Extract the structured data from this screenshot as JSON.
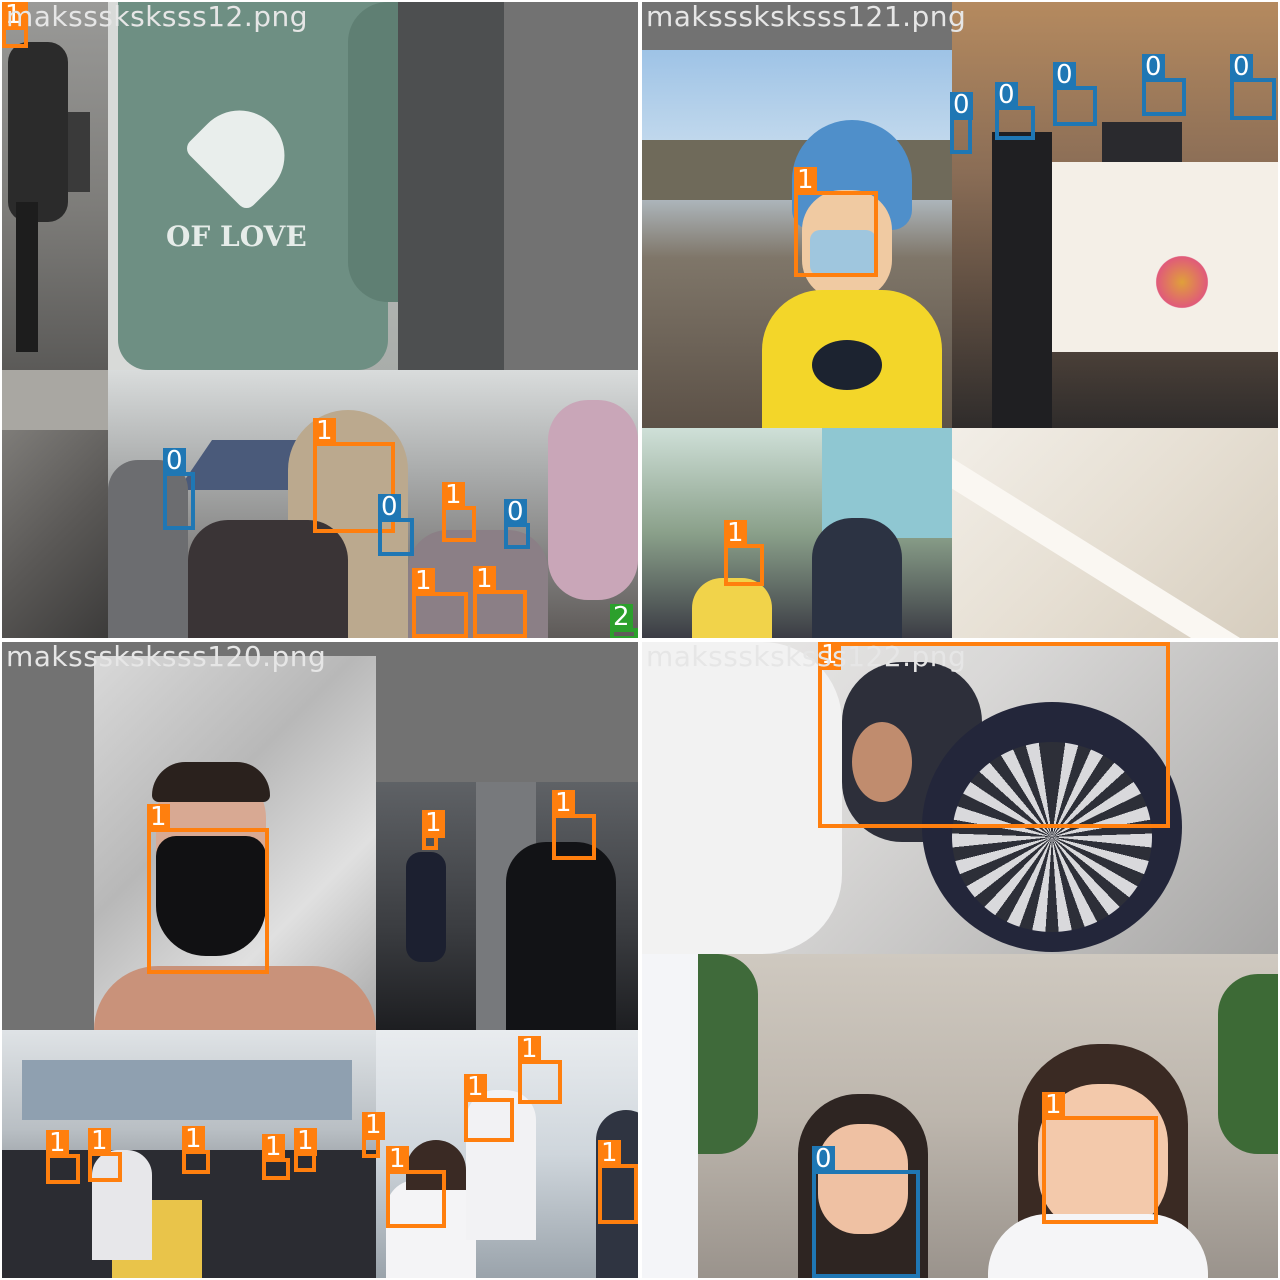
{
  "colors": {
    "class_0": "#1f77b4",
    "class_1": "#ff7f0e",
    "class_2": "#2ca02c",
    "label_text": "#ffffff",
    "filename_text": "#e6e6e6",
    "padding_gray": "#727272"
  },
  "tiles": [
    {
      "filename": "maksssksksss12.png",
      "labels": [
        "1",
        "0",
        "1",
        "0",
        "1",
        "0",
        "1",
        "1",
        "2"
      ]
    },
    {
      "filename": "maksssksksss121.png",
      "labels": [
        "0",
        "0",
        "0",
        "0",
        "0",
        "1",
        "1"
      ]
    },
    {
      "filename": "maksssksksss120.png",
      "labels": [
        "1",
        "1",
        "1",
        "1",
        "1",
        "1",
        "1",
        "1",
        "1",
        "1",
        "1",
        "1",
        "1",
        "1"
      ]
    },
    {
      "filename": "maksssksksss122.png",
      "labels": [
        "1",
        "0",
        "1"
      ]
    }
  ]
}
